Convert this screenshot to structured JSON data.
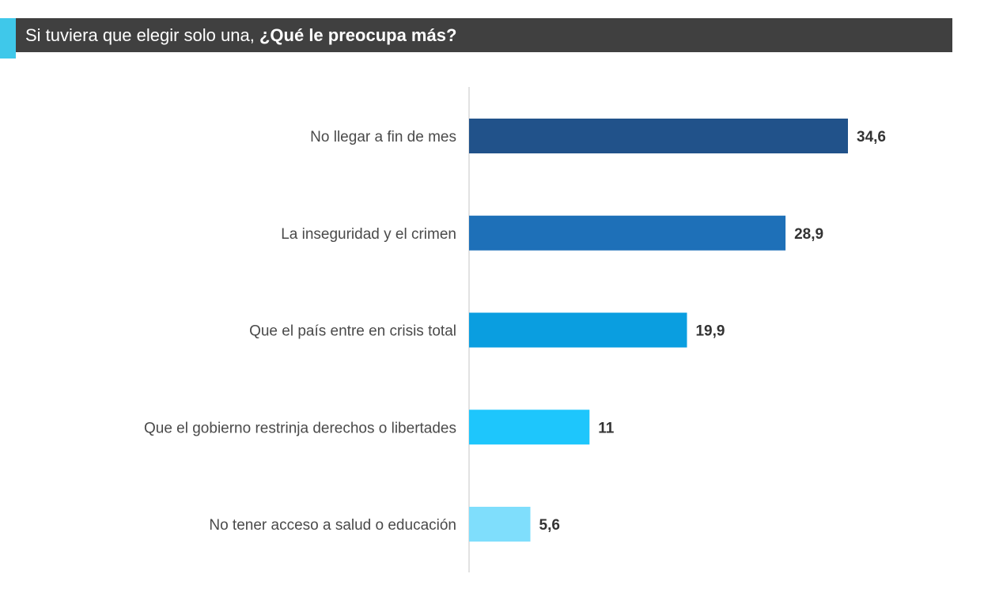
{
  "chart_data": {
    "type": "bar",
    "orientation": "horizontal",
    "title_prefix": "Si tuviera que elegir solo una,",
    "title_bold": "¿Qué le preocupa más?",
    "categories": [
      "No llegar a fin de mes",
      "La inseguridad y el crimen",
      "Que el país entre en crisis total",
      "Que el gobierno restrinja derechos o libertades",
      "No tener acceso a salud o educación"
    ],
    "values": [
      34.6,
      28.9,
      19.9,
      11,
      5.6
    ],
    "value_labels": [
      "34,6",
      "28,9",
      "19,9",
      "11",
      "5,6"
    ],
    "colors": [
      "#21528a",
      "#1e70b8",
      "#0a9ee0",
      "#1ec6fc",
      "#7fdefc"
    ],
    "axis_color": "#d9d9d9",
    "xlim": [
      0,
      34.6
    ],
    "grid": false,
    "legend": "none"
  }
}
